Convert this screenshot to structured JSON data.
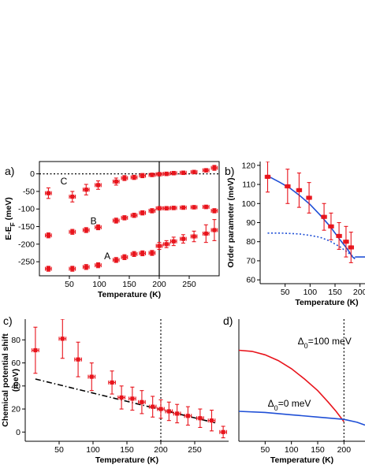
{
  "chart_data": [
    {
      "id": "a",
      "type": "scatter",
      "panel_label": "a)",
      "xlabel": "Temperature (K)",
      "ylabel": "E-E",
      "ylabel_sub": "F",
      "ylabel_unit": " (meV)",
      "xlim": [
        0,
        300
      ],
      "ylim": [
        -290,
        35
      ],
      "xticks": [
        50,
        100,
        150,
        200,
        250
      ],
      "yticks": [
        0,
        -50,
        -100,
        -150,
        -200,
        -250
      ],
      "reference_line": {
        "axis": "y",
        "value": 0,
        "style": "dotted"
      },
      "vertical_line": {
        "x": 200,
        "style": "solid"
      },
      "labels": [
        {
          "text": "C",
          "x": 35,
          "y": -30
        },
        {
          "text": "B",
          "x": 85,
          "y": -143
        },
        {
          "text": "A",
          "x": 108,
          "y": -243
        }
      ],
      "series": [
        {
          "color": "#e8141c",
          "xerr": 5,
          "x": [
            15,
            55,
            78,
            98,
            128,
            142,
            158,
            172,
            188,
            200,
            212,
            224,
            240,
            258,
            278,
            292
          ],
          "y": [
            -55,
            -65,
            -45,
            -32,
            -22,
            -12,
            -10,
            -5,
            -3,
            -1,
            0,
            2,
            3,
            5,
            10,
            17
          ],
          "yerr": [
            15,
            15,
            15,
            12,
            10,
            7,
            6,
            6,
            5,
            5,
            5,
            5,
            5,
            5,
            5,
            7
          ]
        },
        {
          "color": "#e8141c",
          "xerr": 5,
          "x": [
            15,
            55,
            78,
            98,
            128,
            142,
            158,
            172,
            188,
            200,
            212,
            224,
            240,
            258,
            278,
            292
          ],
          "y": [
            -175,
            -165,
            -160,
            -152,
            -133,
            -125,
            -118,
            -111,
            -105,
            -98,
            -98,
            -97,
            -96,
            -95,
            -94,
            -105
          ],
          "yerr": [
            7,
            7,
            7,
            7,
            7,
            6,
            6,
            6,
            6,
            5,
            5,
            5,
            5,
            5,
            5,
            6
          ]
        },
        {
          "color": "#e8141c",
          "xerr": 5,
          "x": [
            15,
            55,
            78,
            98,
            128,
            142,
            158,
            172,
            188,
            200,
            212,
            224,
            240,
            258,
            278,
            292
          ],
          "y": [
            -270,
            -270,
            -265,
            -260,
            -245,
            -237,
            -228,
            -226,
            -225,
            -205,
            -200,
            -192,
            -185,
            -178,
            -170,
            -160
          ],
          "yerr": [
            7,
            7,
            7,
            7,
            7,
            7,
            7,
            7,
            7,
            10,
            10,
            12,
            12,
            15,
            25,
            30
          ]
        }
      ]
    },
    {
      "id": "b",
      "type": "scatter",
      "panel_label": "b)",
      "xlabel": "Temperature (K)",
      "ylabel": "Order parameter (meV)",
      "xlim": [
        0,
        210
      ],
      "ylim": [
        58,
        122
      ],
      "xticks": [
        50,
        100,
        150,
        200
      ],
      "yticks": [
        60,
        70,
        80,
        90,
        100,
        110,
        120
      ],
      "series": [
        {
          "color": "#e8141c",
          "xerr": 5,
          "x": [
            15,
            55,
            78,
            98,
            128,
            142,
            158,
            172,
            182
          ],
          "y": [
            114,
            109,
            107,
            103,
            93,
            88,
            83,
            80,
            77
          ],
          "yerr": [
            8,
            9,
            9,
            8,
            7,
            7,
            7,
            8,
            8
          ]
        }
      ],
      "curves": [
        {
          "color": "#1f4fd6",
          "style": "solid",
          "x": [
            15,
            40,
            60,
            80,
            100,
            120,
            140,
            160,
            175,
            185,
            190
          ],
          "y": [
            114.5,
            111,
            108,
            104,
            99.5,
            94,
            88,
            81,
            76,
            72,
            71
          ]
        },
        {
          "color": "#1f4fd6",
          "style": "dotted",
          "x": [
            15,
            40,
            60,
            80,
            100,
            120,
            140,
            160,
            175,
            185,
            190
          ],
          "y": [
            84.5,
            84.5,
            84.3,
            84,
            83.3,
            82.3,
            80.3,
            77.3,
            74.5,
            72.5,
            71
          ]
        },
        {
          "color": "#1f4fd6",
          "style": "solid",
          "x": [
            190,
            210
          ],
          "y": [
            72,
            72
          ]
        }
      ]
    },
    {
      "id": "c",
      "type": "scatter",
      "panel_label": "c)",
      "xlabel": "Temperature (K)",
      "ylabel": "Chemical potential shift",
      "ylabel2": "(meV)",
      "xlim": [
        0,
        300
      ],
      "ylim": [
        -8,
        98
      ],
      "xticks": [
        50,
        100,
        150,
        200,
        250
      ],
      "yticks": [
        0,
        20,
        40,
        60,
        80
      ],
      "vertical_line": {
        "x": 200,
        "style": "dotted"
      },
      "series": [
        {
          "color": "#e8141c",
          "xerr": 5,
          "x": [
            15,
            55,
            78,
            98,
            128,
            142,
            158,
            172,
            188,
            200,
            212,
            224,
            240,
            258,
            275,
            292
          ],
          "y": [
            71,
            81,
            63,
            48,
            43,
            30,
            29,
            26,
            22,
            20,
            18,
            16,
            14,
            12,
            10,
            0
          ],
          "yerr": [
            20,
            17,
            15,
            12,
            10,
            10,
            10,
            10,
            9,
            8,
            8,
            8,
            8,
            8,
            9,
            5
          ]
        }
      ],
      "curves": [
        {
          "color": "#000000",
          "style": "dashdot",
          "x": [
            15,
            280
          ],
          "y": [
            46,
            8
          ]
        }
      ]
    },
    {
      "id": "d",
      "type": "line",
      "panel_label": "d)",
      "xlabel": "Temperature (K)",
      "xlim": [
        0,
        240
      ],
      "ylim": [
        -8,
        98
      ],
      "xticks": [
        50,
        100,
        150,
        200
      ],
      "vertical_line": {
        "x": 200,
        "style": "dotted"
      },
      "labels": [
        {
          "text": "Δ",
          "sub": "0",
          "rest": "=100 meV",
          "x": 112,
          "y": 76,
          "color": "#e8141c"
        },
        {
          "text": "Δ",
          "sub": "0",
          "rest": "=0 meV",
          "x": 55,
          "y": 22,
          "color": "#1f4fd6"
        }
      ],
      "curves": [
        {
          "color": "#e8141c",
          "style": "solid",
          "x": [
            0,
            25,
            50,
            75,
            100,
            125,
            150,
            170,
            185,
            200
          ],
          "y": [
            71,
            70,
            67,
            62,
            55,
            46,
            36,
            26,
            18,
            9
          ]
        },
        {
          "color": "#1f4fd6",
          "style": "solid",
          "x": [
            0,
            50,
            100,
            150,
            200,
            225,
            240
          ],
          "y": [
            18,
            17,
            15,
            13,
            11,
            8.5,
            6
          ]
        }
      ]
    }
  ]
}
